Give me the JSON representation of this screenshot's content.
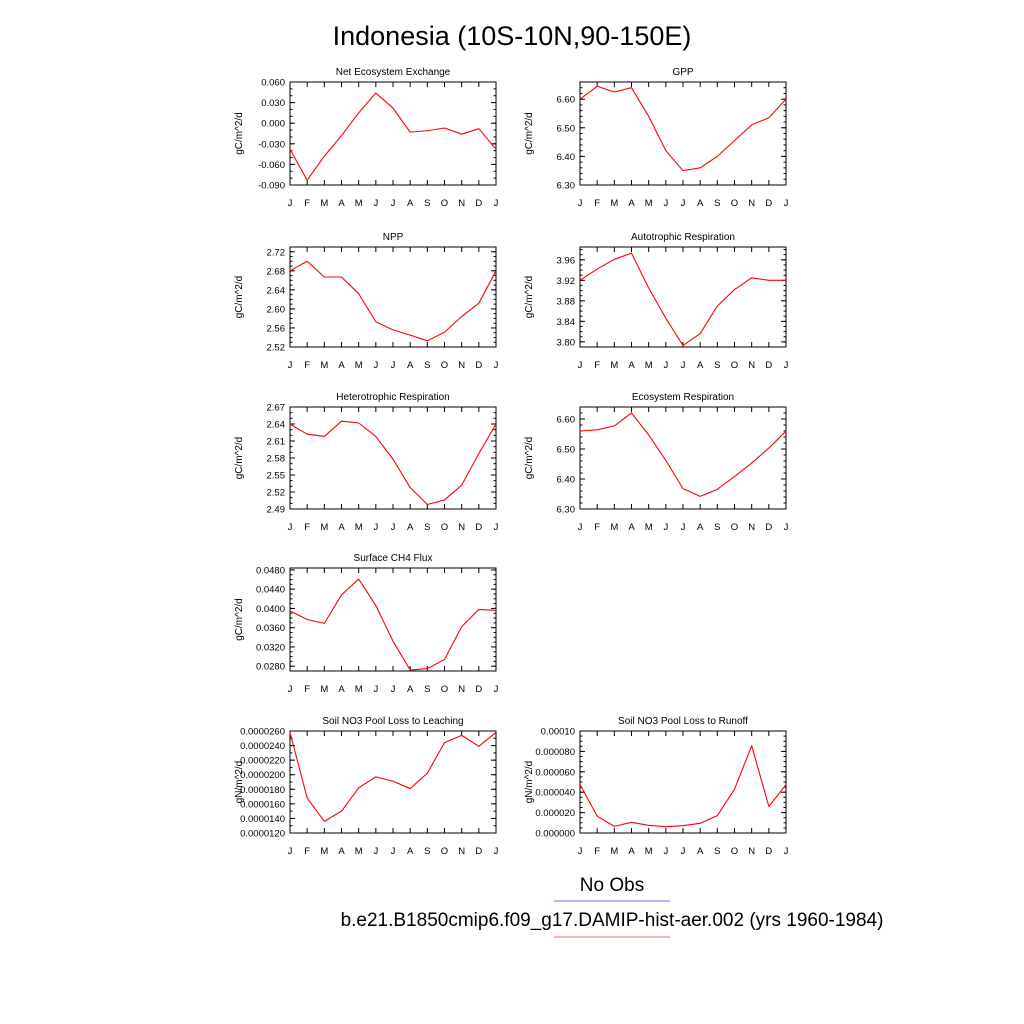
{
  "title": "Indonesia (10S-10N,90-150E)",
  "legend": [
    {
      "label": "No Obs",
      "color": "#6b6bf0"
    },
    {
      "label": "b.e21.B1850cmip6.f09_g17.DAMIP-hist-aer.002 (yrs 1960-1984)",
      "color": "#f07070"
    }
  ],
  "colors": {
    "series": "#ff0000",
    "axes": "#000000"
  },
  "chart_data": [
    {
      "type": "line",
      "title": "Net Ecosystem Exchange",
      "ylabel": "gC/m^2/d",
      "xlabel": "",
      "categories": [
        "J",
        "F",
        "M",
        "A",
        "M",
        "J",
        "J",
        "A",
        "S",
        "O",
        "N",
        "D",
        "J"
      ],
      "ylim": [
        -0.09,
        0.06
      ],
      "yticks": [
        "0.060",
        "0.030",
        "0.000",
        "-0.030",
        "-0.060",
        "-0.090"
      ],
      "ytick_values": [
        0.06,
        0.03,
        0.0,
        -0.03,
        -0.06,
        -0.09
      ],
      "ytick_minor": 3,
      "values": [
        -0.038,
        -0.083,
        -0.048,
        -0.018,
        0.015,
        0.044,
        0.022,
        -0.013,
        -0.011,
        -0.007,
        -0.016,
        -0.008,
        -0.038
      ]
    },
    {
      "type": "line",
      "title": "GPP",
      "ylabel": "gC/m^2/d",
      "xlabel": "",
      "categories": [
        "J",
        "F",
        "M",
        "A",
        "M",
        "J",
        "J",
        "A",
        "S",
        "O",
        "N",
        "D",
        "J"
      ],
      "ylim": [
        6.3,
        6.66
      ],
      "yticks": [
        "6.60",
        "6.50",
        "6.40",
        "6.30"
      ],
      "ytick_values": [
        6.6,
        6.5,
        6.4,
        6.3
      ],
      "ytick_minor": 5,
      "values": [
        6.6,
        6.645,
        6.625,
        6.64,
        6.54,
        6.42,
        6.35,
        6.36,
        6.4,
        6.455,
        6.51,
        6.535,
        6.6
      ]
    },
    {
      "type": "line",
      "title": "NPP",
      "ylabel": "gC/m^2/d",
      "xlabel": "",
      "categories": [
        "J",
        "F",
        "M",
        "A",
        "M",
        "J",
        "J",
        "A",
        "S",
        "O",
        "N",
        "D",
        "J"
      ],
      "ylim": [
        2.52,
        2.73
      ],
      "yticks": [
        "2.72",
        "2.68",
        "2.64",
        "2.60",
        "2.56",
        "2.52"
      ],
      "ytick_values": [
        2.72,
        2.68,
        2.64,
        2.6,
        2.56,
        2.52
      ],
      "ytick_minor": 4,
      "values": [
        2.68,
        2.7,
        2.667,
        2.667,
        2.632,
        2.573,
        2.556,
        2.545,
        2.533,
        2.551,
        2.584,
        2.612,
        2.68
      ]
    },
    {
      "type": "line",
      "title": "Autotrophic Respiration",
      "ylabel": "gC/m^2/d",
      "xlabel": "",
      "categories": [
        "J",
        "F",
        "M",
        "A",
        "M",
        "J",
        "J",
        "A",
        "S",
        "O",
        "N",
        "D",
        "J"
      ],
      "ylim": [
        3.79,
        3.985
      ],
      "yticks": [
        "3.96",
        "3.92",
        "3.88",
        "3.84",
        "3.80"
      ],
      "ytick_values": [
        3.96,
        3.92,
        3.88,
        3.84,
        3.8
      ],
      "ytick_minor": 4,
      "values": [
        3.92,
        3.942,
        3.961,
        3.973,
        3.905,
        3.846,
        3.793,
        3.816,
        3.87,
        3.902,
        3.925,
        3.92,
        3.92
      ]
    },
    {
      "type": "line",
      "title": "Heterotrophic Respiration",
      "ylabel": "gC/m^2/d",
      "xlabel": "",
      "categories": [
        "J",
        "F",
        "M",
        "A",
        "M",
        "J",
        "J",
        "A",
        "S",
        "O",
        "N",
        "D",
        "J"
      ],
      "ylim": [
        2.49,
        2.67
      ],
      "yticks": [
        "2.67",
        "2.64",
        "2.61",
        "2.58",
        "2.55",
        "2.52",
        "2.49"
      ],
      "ytick_values": [
        2.67,
        2.64,
        2.61,
        2.58,
        2.55,
        2.52,
        2.49
      ],
      "ytick_minor": 3,
      "values": [
        2.64,
        2.622,
        2.618,
        2.645,
        2.642,
        2.618,
        2.578,
        2.528,
        2.498,
        2.506,
        2.532,
        2.588,
        2.64
      ]
    },
    {
      "type": "line",
      "title": "Ecosystem Respiration",
      "ylabel": "gC/m^2/d",
      "xlabel": "",
      "categories": [
        "J",
        "F",
        "M",
        "A",
        "M",
        "J",
        "J",
        "A",
        "S",
        "O",
        "N",
        "D",
        "J"
      ],
      "ylim": [
        6.3,
        6.64
      ],
      "yticks": [
        "6.60",
        "6.50",
        "6.40",
        "6.30"
      ],
      "ytick_values": [
        6.6,
        6.5,
        6.4,
        6.3
      ],
      "ytick_minor": 5,
      "values": [
        6.56,
        6.564,
        6.577,
        6.62,
        6.547,
        6.462,
        6.368,
        6.342,
        6.366,
        6.408,
        6.453,
        6.503,
        6.56
      ]
    },
    {
      "type": "line",
      "title": "Surface CH4 Flux",
      "ylabel": "gC/m^2/d",
      "xlabel": "",
      "categories": [
        "J",
        "F",
        "M",
        "A",
        "M",
        "J",
        "J",
        "A",
        "S",
        "O",
        "N",
        "D",
        "J"
      ],
      "ylim": [
        0.027,
        0.0484
      ],
      "yticks": [
        "0.0480",
        "0.0440",
        "0.0400",
        "0.0360",
        "0.0320",
        "0.0280"
      ],
      "ytick_values": [
        0.048,
        0.044,
        0.04,
        0.036,
        0.032,
        0.028
      ],
      "ytick_minor": 4,
      "values": [
        0.0395,
        0.0377,
        0.0369,
        0.0428,
        0.0461,
        0.0406,
        0.0332,
        0.0272,
        0.0275,
        0.0294,
        0.0362,
        0.0398,
        0.0396
      ]
    },
    {
      "type": "line",
      "title": "Soil NO3 Pool Loss to Leaching",
      "ylabel": "gN/m^2/d",
      "xlabel": "",
      "categories": [
        "J",
        "F",
        "M",
        "A",
        "M",
        "J",
        "J",
        "A",
        "S",
        "O",
        "N",
        "D",
        "J"
      ],
      "ylim": [
        1.2e-05,
        2.6e-05
      ],
      "yticks": [
        "0.0000260",
        "0.0000240",
        "0.0000220",
        "0.0000200",
        "0.0000180",
        "0.0000160",
        "0.0000140",
        "0.0000120"
      ],
      "ytick_values": [
        2.6e-05,
        2.4e-05,
        2.2e-05,
        2e-05,
        1.8e-05,
        1.6e-05,
        1.4e-05,
        1.2e-05
      ],
      "ytick_minor": 2,
      "values": [
        2.58e-05,
        1.68e-05,
        1.36e-05,
        1.5e-05,
        1.82e-05,
        1.97e-05,
        1.91e-05,
        1.81e-05,
        2.02e-05,
        2.44e-05,
        2.54e-05,
        2.39e-05,
        2.58e-05
      ]
    },
    {
      "type": "line",
      "title": "Soil NO3 Pool Loss to Runoff",
      "ylabel": "gN/m^2/d",
      "xlabel": "",
      "categories": [
        "J",
        "F",
        "M",
        "A",
        "M",
        "J",
        "J",
        "A",
        "S",
        "O",
        "N",
        "D",
        "J"
      ],
      "ylim": [
        0.0,
        0.0001
      ],
      "yticks": [
        "0.00010",
        "0.000080",
        "0.000060",
        "0.000040",
        "0.000020",
        "0.000000"
      ],
      "ytick_values": [
        0.0001,
        8e-05,
        6e-05,
        4e-05,
        2e-05,
        0.0
      ],
      "ytick_minor": 4,
      "values": [
        4.75e-05,
        1.65e-05,
        6.5e-06,
        1.05e-05,
        7.5e-06,
        6.2e-06,
        7.2e-06,
        9.5e-06,
        1.7e-05,
        4.3e-05,
        8.55e-05,
        2.6e-05,
        4.75e-05
      ]
    }
  ]
}
